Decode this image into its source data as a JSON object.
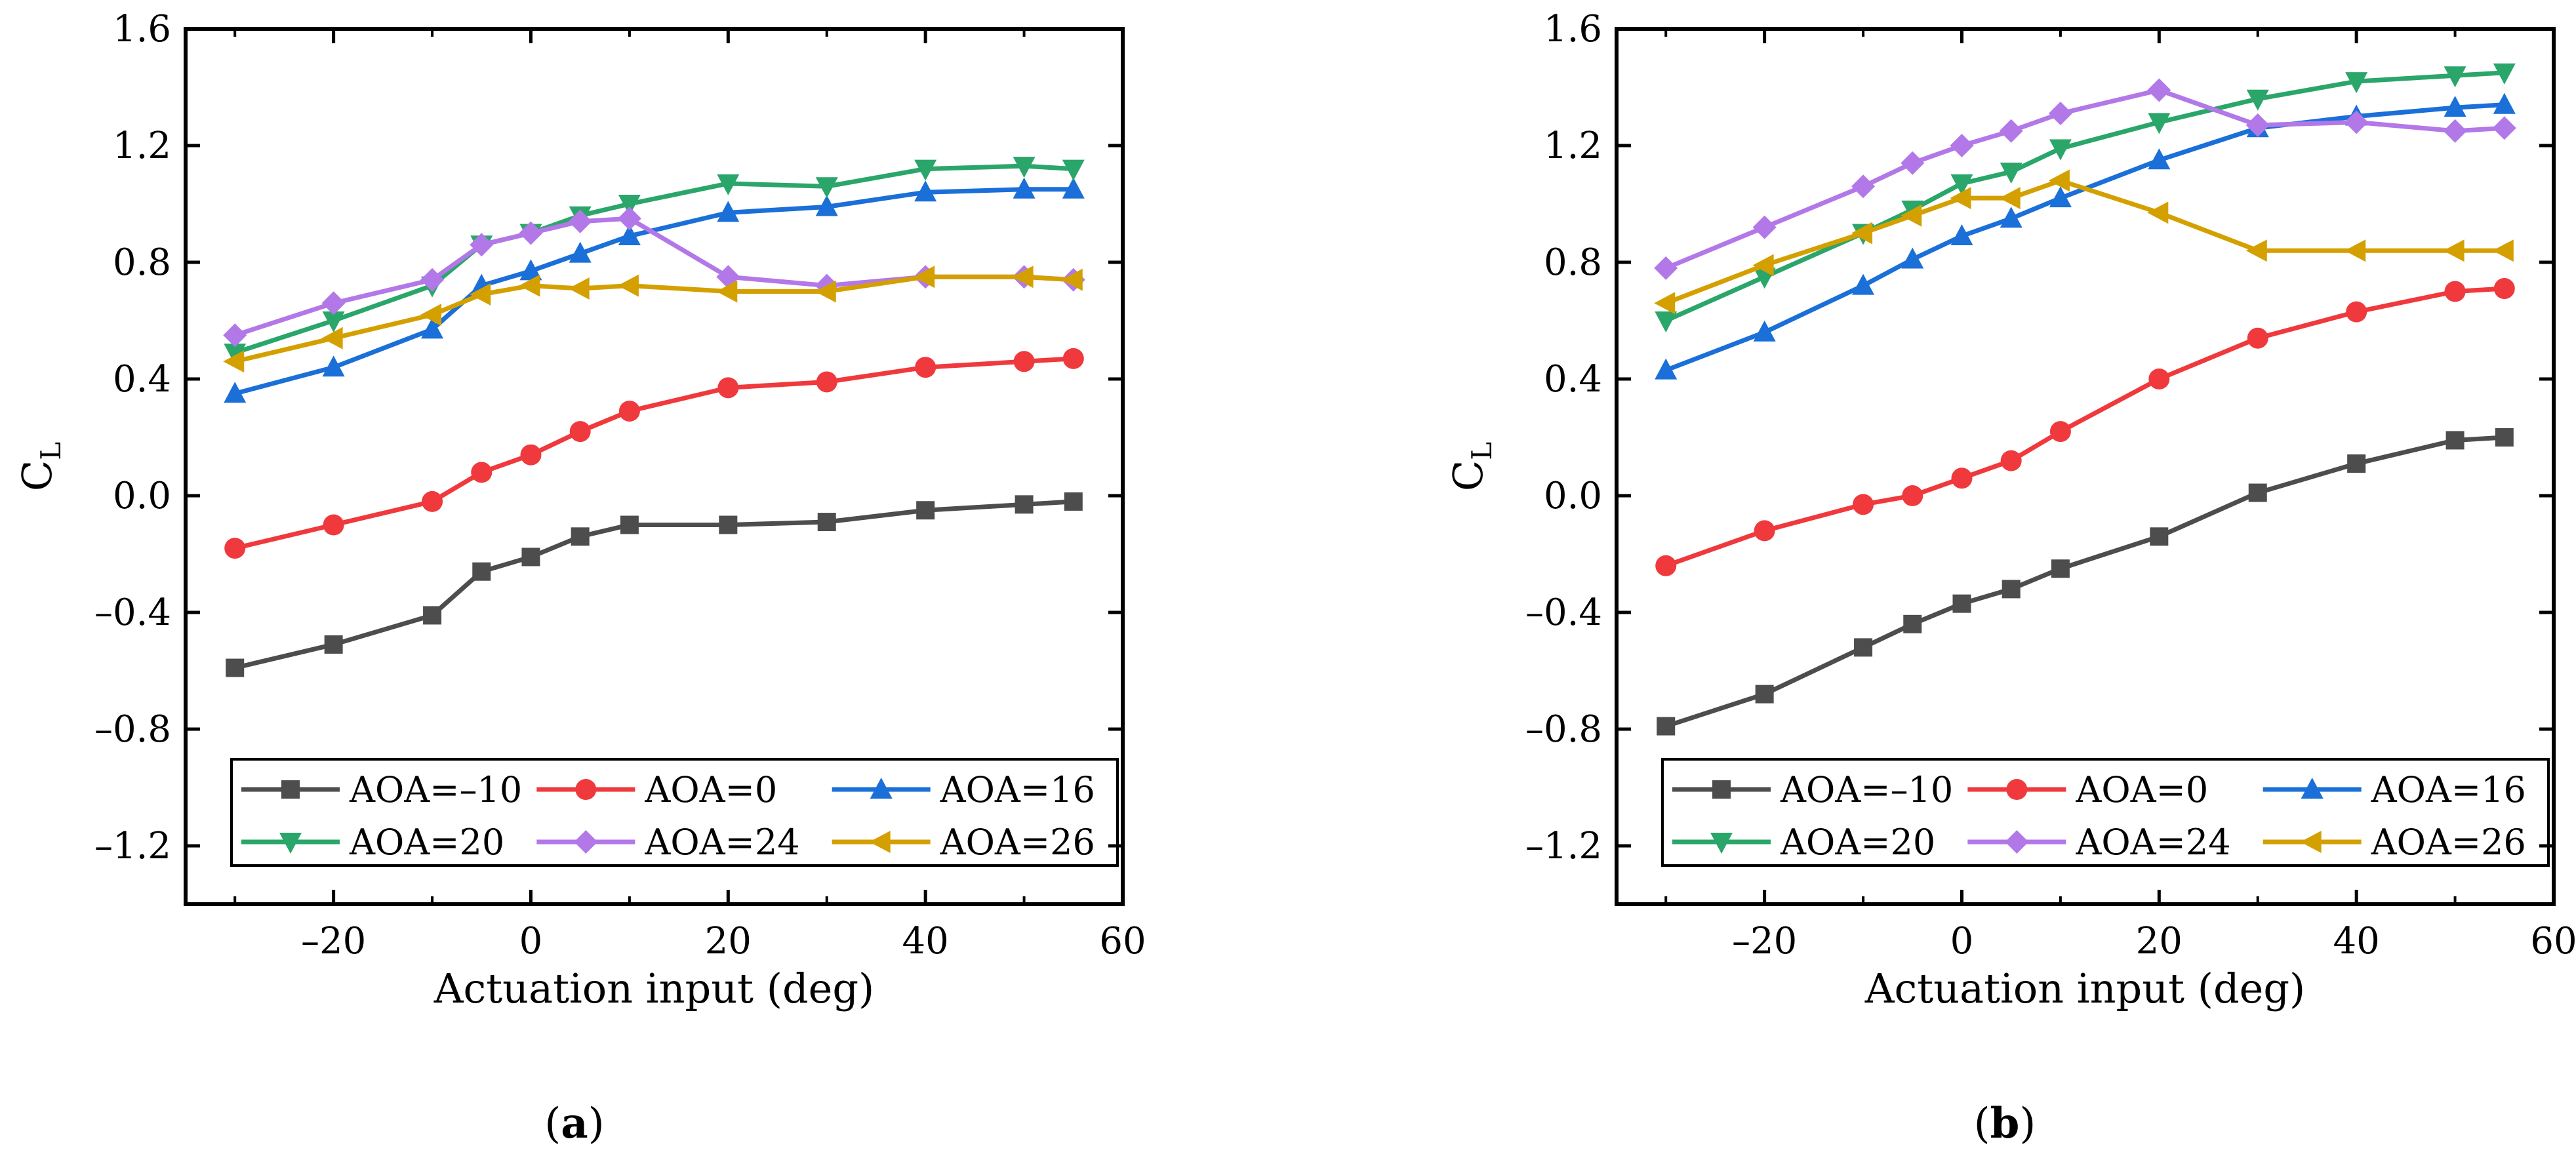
{
  "chart_data": [
    {
      "type": "line",
      "panel_label": "a",
      "xlabel": "Actuation input (deg)",
      "ylabel": "C",
      "ylabel_subscript": "L",
      "xlim": [
        -35,
        60
      ],
      "ylim": [
        -1.4,
        1.6
      ],
      "xticks": [
        -20,
        0,
        20,
        40,
        60
      ],
      "xtick_labels": [
        "–20",
        "0",
        "20",
        "40",
        "60"
      ],
      "yticks": [
        -1.2,
        -0.8,
        -0.4,
        0.0,
        0.4,
        0.8,
        1.2,
        1.6
      ],
      "ytick_labels": [
        "–1.2",
        "–0.8",
        "–0.4",
        "0.0",
        "0.4",
        "0.8",
        "1.2",
        "1.6"
      ],
      "legend_position": "bottom",
      "x": [
        -30,
        -20,
        -10,
        -5,
        0,
        5,
        10,
        20,
        30,
        40,
        50,
        55
      ],
      "series": [
        {
          "name": "AOA=–10",
          "color": "#4d4d4d",
          "marker": "square",
          "values": [
            -0.59,
            -0.51,
            -0.41,
            -0.26,
            -0.21,
            -0.14,
            -0.1,
            -0.1,
            -0.09,
            -0.05,
            -0.03,
            -0.02
          ]
        },
        {
          "name": "AOA=0",
          "color": "#f0393c",
          "marker": "circle",
          "values": [
            -0.18,
            -0.1,
            -0.02,
            0.08,
            0.14,
            0.22,
            0.29,
            0.37,
            0.39,
            0.44,
            0.46,
            0.47
          ]
        },
        {
          "name": "AOA=16",
          "color": "#1a6fd8",
          "marker": "triangle-up",
          "values": [
            0.35,
            0.44,
            0.57,
            0.72,
            0.77,
            0.83,
            0.89,
            0.97,
            0.99,
            1.04,
            1.05,
            1.05
          ]
        },
        {
          "name": "AOA=20",
          "color": "#2aa66a",
          "marker": "triangle-down",
          "values": [
            0.49,
            0.6,
            0.72,
            0.86,
            0.9,
            0.96,
            1.0,
            1.07,
            1.06,
            1.12,
            1.13,
            1.12
          ]
        },
        {
          "name": "AOA=24",
          "color": "#b378e8",
          "marker": "diamond",
          "values": [
            0.55,
            0.66,
            0.74,
            0.86,
            0.9,
            0.94,
            0.95,
            0.75,
            0.72,
            0.75,
            0.75,
            0.74
          ]
        },
        {
          "name": "AOA=26",
          "color": "#d4a000",
          "marker": "triangle-left",
          "values": [
            0.46,
            0.54,
            0.62,
            0.69,
            0.72,
            0.71,
            0.72,
            0.7,
            0.7,
            0.75,
            0.75,
            0.74
          ]
        }
      ]
    },
    {
      "type": "line",
      "panel_label": "b",
      "xlabel": "Actuation input (deg)",
      "ylabel": "C",
      "ylabel_subscript": "L",
      "xlim": [
        -35,
        60
      ],
      "ylim": [
        -1.4,
        1.6
      ],
      "xticks": [
        -20,
        0,
        20,
        40,
        60
      ],
      "xtick_labels": [
        "–20",
        "0",
        "20",
        "40",
        "60"
      ],
      "yticks": [
        -1.2,
        -0.8,
        -0.4,
        0.0,
        0.4,
        0.8,
        1.2,
        1.6
      ],
      "ytick_labels": [
        "–1.2",
        "–0.8",
        "–0.4",
        "0.0",
        "0.4",
        "0.8",
        "1.2",
        "1.6"
      ],
      "legend_position": "bottom",
      "x": [
        -30,
        -20,
        -10,
        -5,
        0,
        5,
        10,
        20,
        30,
        40,
        50,
        55
      ],
      "series": [
        {
          "name": "AOA=–10",
          "color": "#4d4d4d",
          "marker": "square",
          "values": [
            -0.79,
            -0.68,
            -0.52,
            -0.44,
            -0.37,
            -0.32,
            -0.25,
            -0.14,
            0.01,
            0.11,
            0.19,
            0.2
          ]
        },
        {
          "name": "AOA=0",
          "color": "#f0393c",
          "marker": "circle",
          "values": [
            -0.24,
            -0.12,
            -0.03,
            0.0,
            0.06,
            0.12,
            0.22,
            0.4,
            0.54,
            0.63,
            0.7,
            0.71
          ]
        },
        {
          "name": "AOA=16",
          "color": "#1a6fd8",
          "marker": "triangle-up",
          "values": [
            0.43,
            0.56,
            0.72,
            0.81,
            0.89,
            0.95,
            1.02,
            1.15,
            1.26,
            1.3,
            1.33,
            1.34
          ]
        },
        {
          "name": "AOA=20",
          "color": "#2aa66a",
          "marker": "triangle-down",
          "values": [
            0.6,
            0.75,
            0.9,
            0.98,
            1.07,
            1.11,
            1.19,
            1.28,
            1.36,
            1.42,
            1.44,
            1.45
          ]
        },
        {
          "name": "AOA=24",
          "color": "#b378e8",
          "marker": "diamond",
          "values": [
            0.78,
            0.92,
            1.06,
            1.14,
            1.2,
            1.25,
            1.31,
            1.39,
            1.27,
            1.28,
            1.25,
            1.26
          ]
        },
        {
          "name": "AOA=26",
          "color": "#d4a000",
          "marker": "triangle-left",
          "values": [
            0.66,
            0.79,
            0.9,
            0.96,
            1.02,
            1.02,
            1.08,
            0.97,
            0.84,
            0.84,
            0.84,
            0.84
          ]
        }
      ]
    }
  ]
}
